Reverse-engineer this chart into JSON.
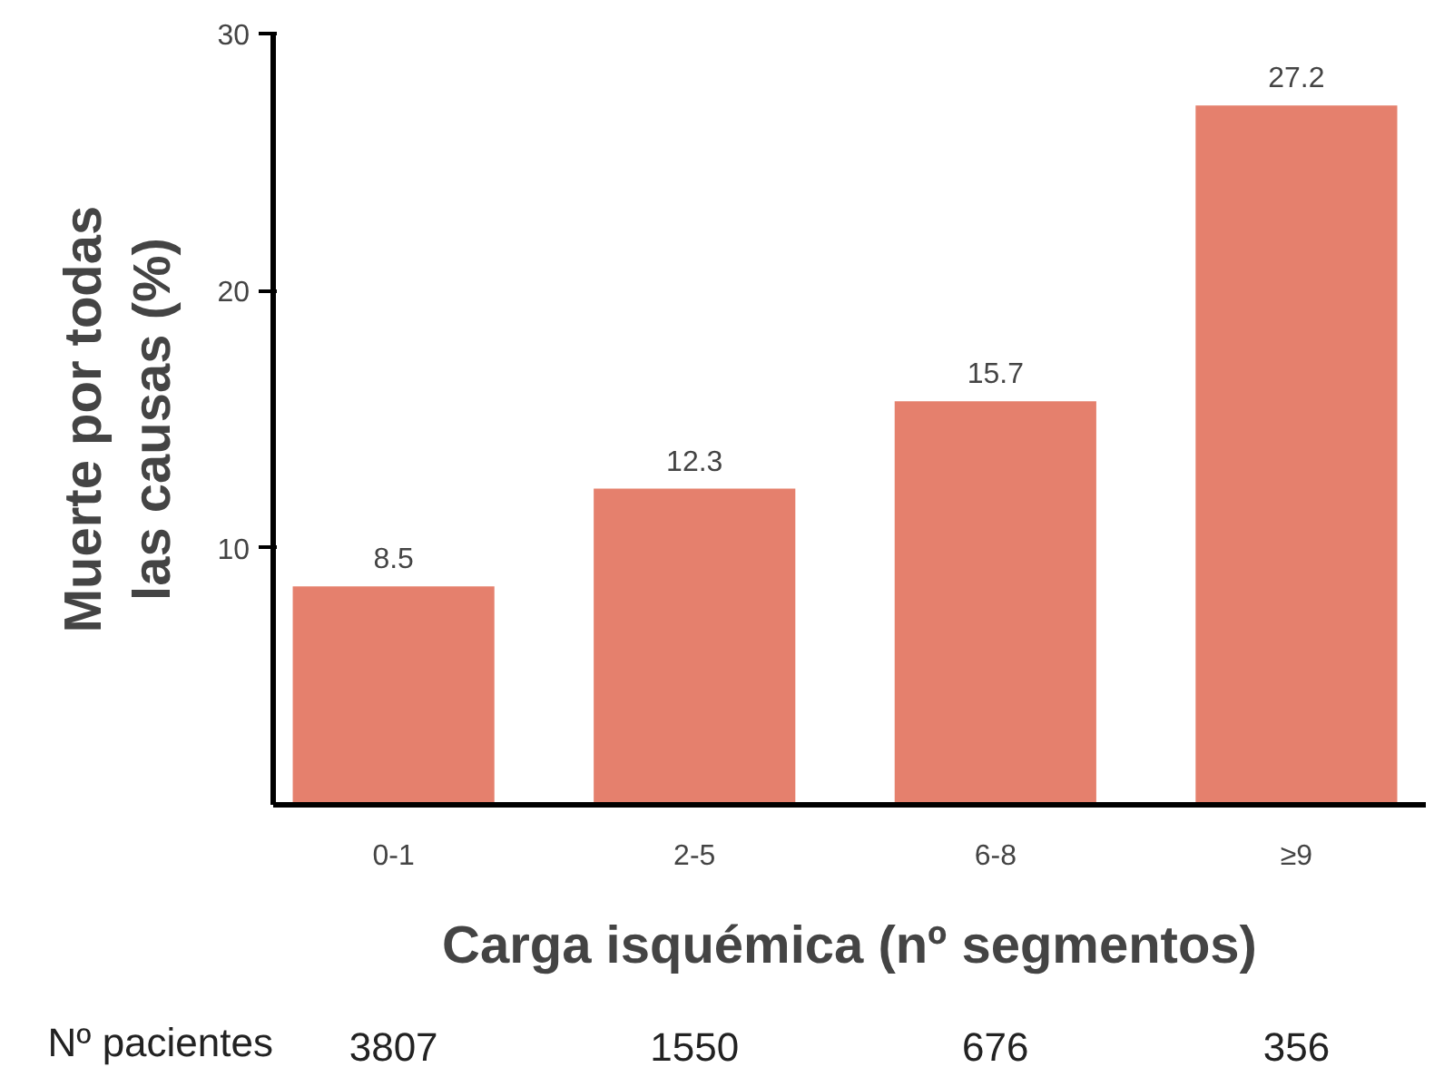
{
  "chart_data": {
    "type": "bar",
    "xlabel": "Carga isquémica (nº segmentos)",
    "ylabel": "Muerte por todas las causas (%)",
    "categories": [
      "0-1",
      "2-5",
      "6-8",
      "≥9"
    ],
    "values": [
      8.5,
      12.3,
      15.7,
      27.2
    ],
    "color": "#e5806d",
    "ylim": [
      0,
      30
    ],
    "yticks": [
      10,
      20,
      30
    ],
    "grid": false,
    "data_labels": true,
    "annotations": [
      "Nº pacientes",
      "3807",
      "1550",
      "676",
      "356"
    ]
  }
}
